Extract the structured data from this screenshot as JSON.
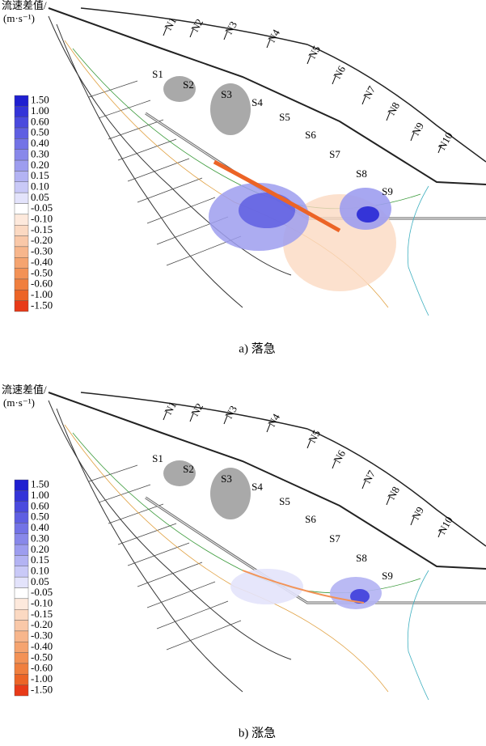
{
  "panels": [
    {
      "legend": {
        "title": "流速差值/",
        "unit": "(m·s⁻¹)",
        "items": [
          {
            "label": "1.50",
            "color": "#1f1fd0"
          },
          {
            "label": "1.00",
            "color": "#3434d8"
          },
          {
            "label": "0.60",
            "color": "#4a4ade"
          },
          {
            "label": "0.50",
            "color": "#5f5fe2"
          },
          {
            "label": "0.40",
            "color": "#7373e6"
          },
          {
            "label": "0.30",
            "color": "#8888ea"
          },
          {
            "label": "0.20",
            "color": "#9d9def"
          },
          {
            "label": "0.15",
            "color": "#b3b3f3"
          },
          {
            "label": "0.10",
            "color": "#c9c9f7"
          },
          {
            "label": "0.05",
            "color": "#e3e3fb"
          },
          {
            "label": "-0.05",
            "color": "#ffffff"
          },
          {
            "label": "-0.10",
            "color": "#fde9dc"
          },
          {
            "label": "-0.15",
            "color": "#fbd9c2"
          },
          {
            "label": "-0.20",
            "color": "#f9c8a8"
          },
          {
            "label": "-0.30",
            "color": "#f7b68c"
          },
          {
            "label": "-0.40",
            "color": "#f5a470"
          },
          {
            "label": "-0.50",
            "color": "#f39256"
          },
          {
            "label": "-0.60",
            "color": "#f07f3e"
          },
          {
            "label": "-1.00",
            "color": "#ec6426"
          },
          {
            "label": "-1.50",
            "color": "#e83a18"
          }
        ]
      },
      "sections_n": [
        "N1",
        "N2",
        "N3",
        "N4",
        "N5",
        "N6",
        "N7",
        "N8",
        "N9",
        "N10"
      ],
      "sections_s": [
        "S1",
        "S2",
        "S3",
        "S4",
        "S5",
        "S6",
        "S7",
        "S8",
        "S9"
      ],
      "caption": "a) 落急"
    },
    {
      "legend": {
        "title": "流速差值/",
        "unit": "(m·s⁻¹)",
        "items": [
          {
            "label": "1.50",
            "color": "#1f1fd0"
          },
          {
            "label": "1.00",
            "color": "#3434d8"
          },
          {
            "label": "0.60",
            "color": "#4a4ade"
          },
          {
            "label": "0.50",
            "color": "#5f5fe2"
          },
          {
            "label": "0.40",
            "color": "#7373e6"
          },
          {
            "label": "0.30",
            "color": "#8888ea"
          },
          {
            "label": "0.20",
            "color": "#9d9def"
          },
          {
            "label": "0.15",
            "color": "#b3b3f3"
          },
          {
            "label": "0.10",
            "color": "#c9c9f7"
          },
          {
            "label": "0.05",
            "color": "#e3e3fb"
          },
          {
            "label": "-0.05",
            "color": "#ffffff"
          },
          {
            "label": "-0.10",
            "color": "#fde9dc"
          },
          {
            "label": "-0.15",
            "color": "#fbd9c2"
          },
          {
            "label": "-0.20",
            "color": "#f9c8a8"
          },
          {
            "label": "-0.30",
            "color": "#f7b68c"
          },
          {
            "label": "-0.40",
            "color": "#f5a470"
          },
          {
            "label": "-0.50",
            "color": "#f39256"
          },
          {
            "label": "-0.60",
            "color": "#f07f3e"
          },
          {
            "label": "-1.00",
            "color": "#ec6426"
          },
          {
            "label": "-1.50",
            "color": "#e83a18"
          }
        ]
      },
      "sections_n": [
        "N1",
        "N2",
        "N3",
        "N4",
        "N5",
        "N6",
        "N7",
        "N8",
        "N9",
        "N10"
      ],
      "sections_s": [
        "S1",
        "S2",
        "S3",
        "S4",
        "S5",
        "S6",
        "S7",
        "S8",
        "S9"
      ],
      "caption": "b) 涨急"
    }
  ]
}
